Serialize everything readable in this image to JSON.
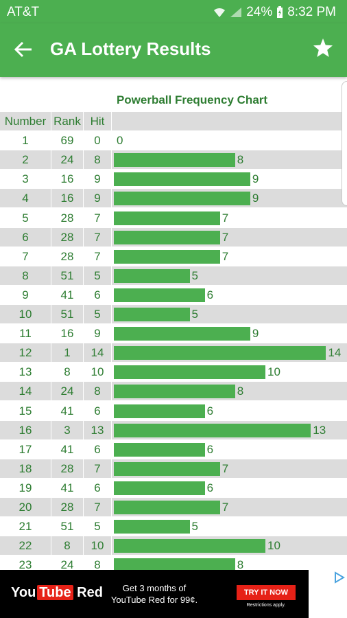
{
  "status_bar": {
    "carrier": "AT&T",
    "battery": "24%",
    "time": "8:32 PM",
    "icons": [
      "wifi-icon",
      "signal-icon",
      "battery-charging-icon"
    ]
  },
  "app_bar": {
    "title": "GA Lottery Results",
    "back_icon": "arrow-left-icon",
    "favorite_icon": "star-icon"
  },
  "colors": {
    "accent": "#4caf50",
    "text_green": "#2e7d32",
    "stripe": "#dcdcdc"
  },
  "chart_data": {
    "type": "bar",
    "title": "Powerball Frequency Chart",
    "columns": [
      "Number",
      "Rank",
      "Hit"
    ],
    "rows": [
      {
        "number": "1",
        "rank": "69",
        "hit": "0"
      },
      {
        "number": "2",
        "rank": "24",
        "hit": "8"
      },
      {
        "number": "3",
        "rank": "16",
        "hit": "9"
      },
      {
        "number": "4",
        "rank": "16",
        "hit": "9"
      },
      {
        "number": "5",
        "rank": "28",
        "hit": "7"
      },
      {
        "number": "6",
        "rank": "28",
        "hit": "7"
      },
      {
        "number": "7",
        "rank": "28",
        "hit": "7"
      },
      {
        "number": "8",
        "rank": "51",
        "hit": "5"
      },
      {
        "number": "9",
        "rank": "41",
        "hit": "6"
      },
      {
        "number": "10",
        "rank": "51",
        "hit": "5"
      },
      {
        "number": "11",
        "rank": "16",
        "hit": "9"
      },
      {
        "number": "12",
        "rank": "1",
        "hit": "14"
      },
      {
        "number": "13",
        "rank": "8",
        "hit": "10"
      },
      {
        "number": "14",
        "rank": "24",
        "hit": "8"
      },
      {
        "number": "15",
        "rank": "41",
        "hit": "6"
      },
      {
        "number": "16",
        "rank": "3",
        "hit": "13"
      },
      {
        "number": "17",
        "rank": "41",
        "hit": "6"
      },
      {
        "number": "18",
        "rank": "28",
        "hit": "7"
      },
      {
        "number": "19",
        "rank": "41",
        "hit": "6"
      },
      {
        "number": "20",
        "rank": "28",
        "hit": "7"
      },
      {
        "number": "21",
        "rank": "51",
        "hit": "5"
      },
      {
        "number": "22",
        "rank": "8",
        "hit": "10"
      },
      {
        "number": "23",
        "rank": "24",
        "hit": "8"
      }
    ]
  },
  "ad": {
    "brand_you": "You",
    "brand_tube": "Tube",
    "brand_red": "Red",
    "promo_line1": "Get 3 months of",
    "promo_line2": "YouTube Red for 99¢.",
    "cta": "TRY IT NOW",
    "restrictions": "Restrictions apply.",
    "adchoices_icon": "adchoices-icon"
  }
}
